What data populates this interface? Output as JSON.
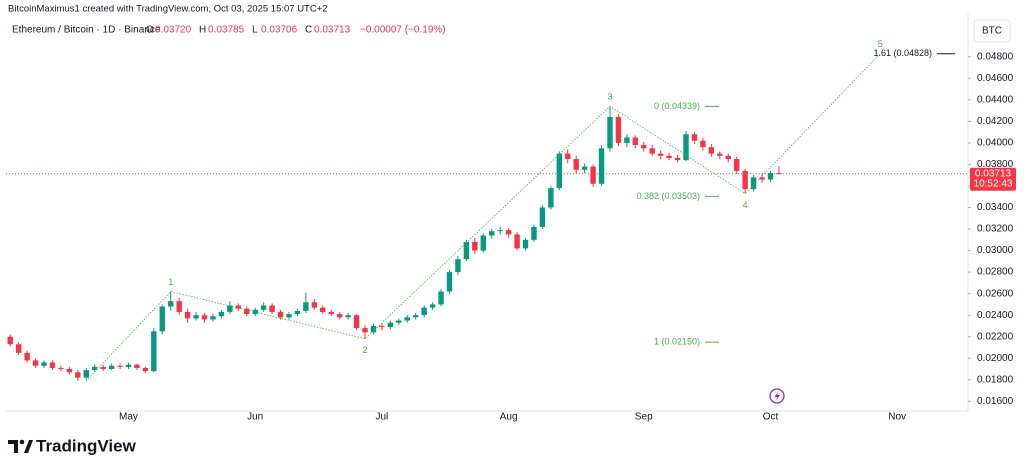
{
  "header": "BitcoinMaximus1 created with TradingView.com, Oct 03, 2025 15:07 UTC+2",
  "brand": "TradingView",
  "chart_data": {
    "type": "candlestick",
    "symbol": "Ethereum / Bitcoin · 1D · Binance",
    "legend": [
      {
        "label": "O",
        "value": "0.03720"
      },
      {
        "label": "H",
        "value": "0.03785"
      },
      {
        "label": "L",
        "value": "0.03706"
      },
      {
        "label": "C",
        "value": "0.03713"
      }
    ],
    "change": "−0.00007 (−0.19%)",
    "currency": "BTC",
    "up_color": "#089981",
    "down_color": "#f23645",
    "categories": [
      null,
      null,
      null,
      null,
      null,
      null,
      null,
      null,
      null,
      null,
      null,
      null,
      null,
      null,
      "May",
      null,
      null,
      null,
      null,
      null,
      null,
      null,
      null,
      null,
      null,
      null,
      null,
      null,
      null,
      "Jun",
      null,
      null,
      null,
      null,
      null,
      null,
      null,
      null,
      null,
      null,
      null,
      null,
      null,
      null,
      "Jul",
      null,
      null,
      null,
      null,
      null,
      null,
      null,
      null,
      null,
      null,
      null,
      null,
      null,
      null,
      "Aug",
      null,
      null,
      null,
      null,
      null,
      null,
      null,
      null,
      null,
      null,
      null,
      null,
      null,
      null,
      null,
      "Sep",
      null,
      null,
      null,
      null,
      null,
      null,
      null,
      null,
      null,
      null,
      null,
      null,
      null,
      null,
      "Oct",
      null,
      null,
      null,
      null,
      null,
      null,
      null,
      null,
      null,
      null,
      null,
      null,
      null,
      null,
      "Nov",
      null,
      null,
      null,
      null,
      null,
      null,
      null,
      null
    ],
    "ohlc": [
      [
        0.022,
        0.0222,
        0.0211,
        0.0213
      ],
      [
        0.0213,
        0.0215,
        0.0203,
        0.0205
      ],
      [
        0.0205,
        0.0207,
        0.0196,
        0.0198
      ],
      [
        0.0198,
        0.02,
        0.0191,
        0.0193
      ],
      [
        0.0193,
        0.0198,
        0.0191,
        0.0196
      ],
      [
        0.0196,
        0.0198,
        0.0189,
        0.0191
      ],
      [
        0.0191,
        0.0193,
        0.0188,
        0.019
      ],
      [
        0.019,
        0.0192,
        0.0185,
        0.0187
      ],
      [
        0.0187,
        0.0189,
        0.0179,
        0.0182
      ],
      [
        0.0182,
        0.0191,
        0.018,
        0.0189
      ],
      [
        0.0189,
        0.0194,
        0.0187,
        0.0192
      ],
      [
        0.0192,
        0.0194,
        0.0188,
        0.019
      ],
      [
        0.019,
        0.0195,
        0.0189,
        0.0193
      ],
      [
        0.0193,
        0.0195,
        0.019,
        0.0192
      ],
      [
        0.0192,
        0.0196,
        0.019,
        0.0194
      ],
      [
        0.0194,
        0.0195,
        0.0189,
        0.0191
      ],
      [
        0.0191,
        0.0192,
        0.0186,
        0.0188
      ],
      [
        0.0188,
        0.0228,
        0.0187,
        0.0225
      ],
      [
        0.0225,
        0.025,
        0.0222,
        0.0248
      ],
      [
        0.0248,
        0.0262,
        0.0244,
        0.0253
      ],
      [
        0.0253,
        0.0256,
        0.024,
        0.0243
      ],
      [
        0.0243,
        0.0246,
        0.0233,
        0.0237
      ],
      [
        0.0237,
        0.0243,
        0.0235,
        0.024
      ],
      [
        0.024,
        0.0242,
        0.0233,
        0.0236
      ],
      [
        0.0236,
        0.0241,
        0.0234,
        0.0239
      ],
      [
        0.0239,
        0.0245,
        0.0237,
        0.0243
      ],
      [
        0.0243,
        0.0253,
        0.0241,
        0.0249
      ],
      [
        0.0249,
        0.0251,
        0.0244,
        0.0246
      ],
      [
        0.0246,
        0.0248,
        0.0239,
        0.0241
      ],
      [
        0.0241,
        0.0247,
        0.0239,
        0.0245
      ],
      [
        0.0245,
        0.0252,
        0.0243,
        0.0249
      ],
      [
        0.0249,
        0.0251,
        0.0241,
        0.0243
      ],
      [
        0.0243,
        0.0245,
        0.0236,
        0.0238
      ],
      [
        0.0238,
        0.0243,
        0.0236,
        0.0241
      ],
      [
        0.0241,
        0.0246,
        0.0239,
        0.0244
      ],
      [
        0.0244,
        0.0261,
        0.0242,
        0.0252
      ],
      [
        0.0252,
        0.0255,
        0.0245,
        0.0247
      ],
      [
        0.0247,
        0.0249,
        0.0241,
        0.0243
      ],
      [
        0.0243,
        0.0245,
        0.0239,
        0.0241
      ],
      [
        0.0241,
        0.0243,
        0.0236,
        0.0238
      ],
      [
        0.0238,
        0.0242,
        0.0236,
        0.024
      ],
      [
        0.024,
        0.0241,
        0.0226,
        0.0228
      ],
      [
        0.0228,
        0.0231,
        0.0218,
        0.0224
      ],
      [
        0.0224,
        0.0232,
        0.0222,
        0.023
      ],
      [
        0.023,
        0.0232,
        0.0226,
        0.0229
      ],
      [
        0.0229,
        0.0235,
        0.0227,
        0.0233
      ],
      [
        0.0233,
        0.0237,
        0.0231,
        0.0235
      ],
      [
        0.0235,
        0.024,
        0.0233,
        0.0238
      ],
      [
        0.0238,
        0.0242,
        0.0236,
        0.024
      ],
      [
        0.024,
        0.0249,
        0.0238,
        0.0247
      ],
      [
        0.0247,
        0.0252,
        0.0245,
        0.025
      ],
      [
        0.025,
        0.0264,
        0.0248,
        0.0262
      ],
      [
        0.0262,
        0.0282,
        0.026,
        0.028
      ],
      [
        0.028,
        0.0295,
        0.0277,
        0.0292
      ],
      [
        0.0292,
        0.031,
        0.029,
        0.0308
      ],
      [
        0.0308,
        0.0312,
        0.0297,
        0.03
      ],
      [
        0.03,
        0.0316,
        0.0298,
        0.0314
      ],
      [
        0.0314,
        0.032,
        0.0311,
        0.0318
      ],
      [
        0.0318,
        0.0322,
        0.0315,
        0.0319
      ],
      [
        0.0319,
        0.0321,
        0.0312,
        0.0315
      ],
      [
        0.0315,
        0.0317,
        0.03,
        0.0302
      ],
      [
        0.0302,
        0.0312,
        0.03,
        0.031
      ],
      [
        0.031,
        0.0324,
        0.0308,
        0.0322
      ],
      [
        0.0322,
        0.0342,
        0.032,
        0.034
      ],
      [
        0.034,
        0.036,
        0.0338,
        0.0358
      ],
      [
        0.0358,
        0.0392,
        0.0356,
        0.039
      ],
      [
        0.039,
        0.0394,
        0.0381,
        0.0385
      ],
      [
        0.0385,
        0.0388,
        0.0372,
        0.0375
      ],
      [
        0.0375,
        0.0381,
        0.0372,
        0.0378
      ],
      [
        0.0378,
        0.038,
        0.0359,
        0.0362
      ],
      [
        0.0362,
        0.0398,
        0.036,
        0.0395
      ],
      [
        0.0395,
        0.0434,
        0.0392,
        0.0424
      ],
      [
        0.0424,
        0.0427,
        0.0397,
        0.04
      ],
      [
        0.04,
        0.0408,
        0.0396,
        0.0405
      ],
      [
        0.0405,
        0.0407,
        0.0395,
        0.0398
      ],
      [
        0.0398,
        0.0401,
        0.0392,
        0.0395
      ],
      [
        0.0395,
        0.0398,
        0.0388,
        0.039
      ],
      [
        0.039,
        0.0393,
        0.0385,
        0.0388
      ],
      [
        0.0388,
        0.0391,
        0.0384,
        0.0386
      ],
      [
        0.0386,
        0.0389,
        0.0382,
        0.0384
      ],
      [
        0.0384,
        0.0411,
        0.0383,
        0.0408
      ],
      [
        0.0408,
        0.041,
        0.0399,
        0.0402
      ],
      [
        0.0402,
        0.0405,
        0.0393,
        0.0396
      ],
      [
        0.0396,
        0.0399,
        0.0387,
        0.039
      ],
      [
        0.039,
        0.0392,
        0.0385,
        0.0388
      ],
      [
        0.0388,
        0.039,
        0.0382,
        0.0385
      ],
      [
        0.0385,
        0.0387,
        0.0371,
        0.0374
      ],
      [
        0.0374,
        0.0376,
        0.0353,
        0.0357
      ],
      [
        0.0357,
        0.037,
        0.0355,
        0.0368
      ],
      [
        0.0368,
        0.0371,
        0.0363,
        0.0366
      ],
      [
        0.0366,
        0.0374,
        0.0364,
        0.0372
      ],
      [
        0.0372,
        0.03785,
        0.03706,
        0.03713
      ],
      null,
      null,
      null,
      null,
      null,
      null,
      null,
      null,
      null,
      null,
      null,
      null,
      null,
      null,
      null,
      null,
      null,
      null,
      null,
      null,
      null,
      null
    ],
    "wave": {
      "color": "#4caf50",
      "x": [
        9,
        19,
        42,
        71,
        87,
        103
      ],
      "values": [
        0.0179,
        0.0262,
        0.0218,
        0.0434,
        0.0353,
        0.0483
      ],
      "labels": [
        null,
        "1",
        "2",
        "3",
        "4",
        "5"
      ]
    },
    "fib_levels": [
      {
        "label": "1.61 (0.04828)",
        "value": 0.04828,
        "color": "#131722"
      },
      {
        "label": "0 (0.04339)",
        "value": 0.04339,
        "color": "#4caf50"
      },
      {
        "label": "0.382 (0.03503)",
        "value": 0.03503,
        "color": "#4caf50"
      },
      {
        "label": "1 (0.02150)",
        "value": 0.0215,
        "color": "#4caf50"
      }
    ],
    "last_price": {
      "value": 0.03713,
      "label": "0.03713"
    },
    "countdown": "10:52:43",
    "ylim": [
      0.0151,
      0.0516
    ],
    "yticks": [
      {
        "value": 0.016,
        "label": "0.01600"
      },
      {
        "value": 0.018,
        "label": "0.01800"
      },
      {
        "value": 0.02,
        "label": "0.02000"
      },
      {
        "value": 0.022,
        "label": "0.02200"
      },
      {
        "value": 0.024,
        "label": "0.02400"
      },
      {
        "value": 0.026,
        "label": "0.02600"
      },
      {
        "value": 0.028,
        "label": "0.02800"
      },
      {
        "value": 0.03,
        "label": "0.03000"
      },
      {
        "value": 0.032,
        "label": "0.03200"
      },
      {
        "value": 0.034,
        "label": "0.03400"
      },
      {
        "value": 0.036,
        "label": "0.03600"
      },
      {
        "value": 0.038,
        "label": "0.03800"
      },
      {
        "value": 0.04,
        "label": "0.04000"
      },
      {
        "value": 0.042,
        "label": "0.04200"
      },
      {
        "value": 0.044,
        "label": "0.04400"
      },
      {
        "value": 0.046,
        "label": "0.04600"
      },
      {
        "value": 0.048,
        "label": "0.04800"
      }
    ],
    "grid": false
  }
}
